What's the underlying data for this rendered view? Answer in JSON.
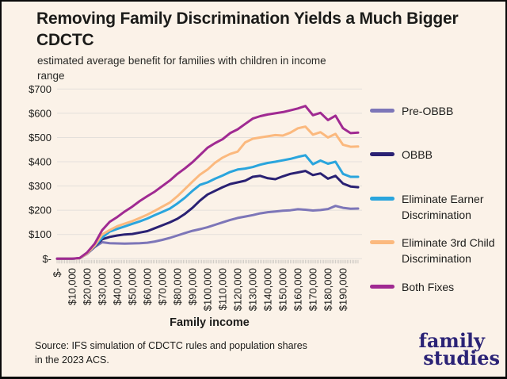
{
  "title": "Removing Family Discrimination Yields a Much Bigger CDCTC",
  "subtitle": "estimated average benefit for families with children in income range",
  "source_note": "Source: IFS simulation of CDCTC rules and population shares in the 2023 ACS.",
  "logo": {
    "line1": "family",
    "line2": "studies",
    "color": "#2b2376"
  },
  "colors": {
    "background": "#fbf2e8",
    "border": "#0a0a0a",
    "gridline": "#e4e0db",
    "tick": "#c9c5bf",
    "text": "#1c1c1a"
  },
  "chart_data": {
    "type": "line",
    "title": "Removing Family Discrimination Yields a Much Bigger CDCTC",
    "subtitle": "estimated average benefit for families with children in income range",
    "xlabel": "Family income",
    "ylabel": "",
    "xlim": [
      0,
      200000
    ],
    "ylim": [
      0,
      700
    ],
    "grid": "horizontal",
    "legend_position": "right",
    "x": [
      0,
      5000,
      10000,
      15000,
      20000,
      25000,
      30000,
      35000,
      40000,
      45000,
      50000,
      55000,
      60000,
      65000,
      70000,
      75000,
      80000,
      85000,
      90000,
      95000,
      100000,
      105000,
      110000,
      115000,
      120000,
      125000,
      130000,
      135000,
      140000,
      145000,
      150000,
      155000,
      160000,
      165000,
      170000,
      175000,
      180000,
      185000,
      190000,
      195000,
      200000
    ],
    "x_tick_step": 10000,
    "x_tick_labels": [
      "$-",
      "$10,000",
      "$20,000",
      "$30,000",
      "$40,000",
      "$50,000",
      "$60,000",
      "$70,000",
      "$80,000",
      "$90,000",
      "$100,000",
      "$110,000",
      "$120,000",
      "$130,000",
      "$140,000",
      "$150,000",
      "$160,000",
      "$170,000",
      "$180,000",
      "$190,000"
    ],
    "y_ticks": [
      {
        "value": 0,
        "label": "$-"
      },
      {
        "value": 100,
        "label": "$100"
      },
      {
        "value": 200,
        "label": "$200"
      },
      {
        "value": 300,
        "label": "$300"
      },
      {
        "value": 400,
        "label": "$400"
      },
      {
        "value": 500,
        "label": "$500"
      },
      {
        "value": 600,
        "label": "$600"
      },
      {
        "value": 700,
        "label": "$700"
      }
    ],
    "series": [
      {
        "name": "Pre-OBBB",
        "color": "#7d76b8",
        "values": [
          0,
          0,
          0,
          2,
          20,
          48,
          68,
          64,
          63,
          62,
          63,
          64,
          66,
          71,
          78,
          86,
          96,
          106,
          115,
          122,
          130,
          140,
          150,
          160,
          168,
          174,
          180,
          187,
          192,
          195,
          198,
          200,
          204,
          202,
          199,
          201,
          205,
          218,
          210,
          206,
          207
        ]
      },
      {
        "name": "OBBB",
        "color": "#2a2173",
        "values": [
          0,
          0,
          0,
          2,
          22,
          50,
          80,
          90,
          96,
          100,
          102,
          108,
          114,
          126,
          138,
          150,
          165,
          185,
          210,
          240,
          265,
          280,
          295,
          308,
          315,
          322,
          338,
          342,
          332,
          328,
          340,
          350,
          356,
          362,
          345,
          352,
          330,
          342,
          310,
          298,
          295
        ]
      },
      {
        "name": "Eliminate Earner Discrimination",
        "color": "#2aa5dd",
        "values": [
          0,
          0,
          0,
          2,
          22,
          52,
          87,
          112,
          123,
          133,
          144,
          154,
          166,
          180,
          193,
          207,
          228,
          252,
          280,
          305,
          315,
          330,
          343,
          358,
          368,
          372,
          378,
          388,
          395,
          400,
          406,
          412,
          420,
          427,
          390,
          405,
          392,
          400,
          350,
          338,
          338
        ]
      },
      {
        "name": "Eliminate 3rd Child Discrimination",
        "color": "#fbb97e",
        "values": [
          0,
          0,
          0,
          2,
          22,
          54,
          100,
          118,
          134,
          145,
          155,
          168,
          182,
          198,
          215,
          232,
          258,
          288,
          318,
          347,
          368,
          396,
          417,
          432,
          442,
          480,
          495,
          500,
          505,
          510,
          508,
          520,
          538,
          545,
          512,
          522,
          500,
          515,
          470,
          462,
          463
        ]
      },
      {
        "name": "Both Fixes",
        "color": "#a02a92",
        "values": [
          0,
          0,
          0,
          3,
          26,
          62,
          118,
          152,
          172,
          195,
          215,
          238,
          258,
          277,
          300,
          323,
          350,
          373,
          398,
          428,
          458,
          477,
          493,
          518,
          534,
          556,
          578,
          588,
          595,
          600,
          605,
          612,
          620,
          630,
          592,
          602,
          572,
          590,
          538,
          518,
          520
        ]
      }
    ]
  },
  "legend": {
    "items": [
      "Pre-OBBB",
      "OBBB",
      "Eliminate Earner Discrimination",
      "Eliminate 3rd Child Discrimination",
      "Both Fixes"
    ]
  }
}
